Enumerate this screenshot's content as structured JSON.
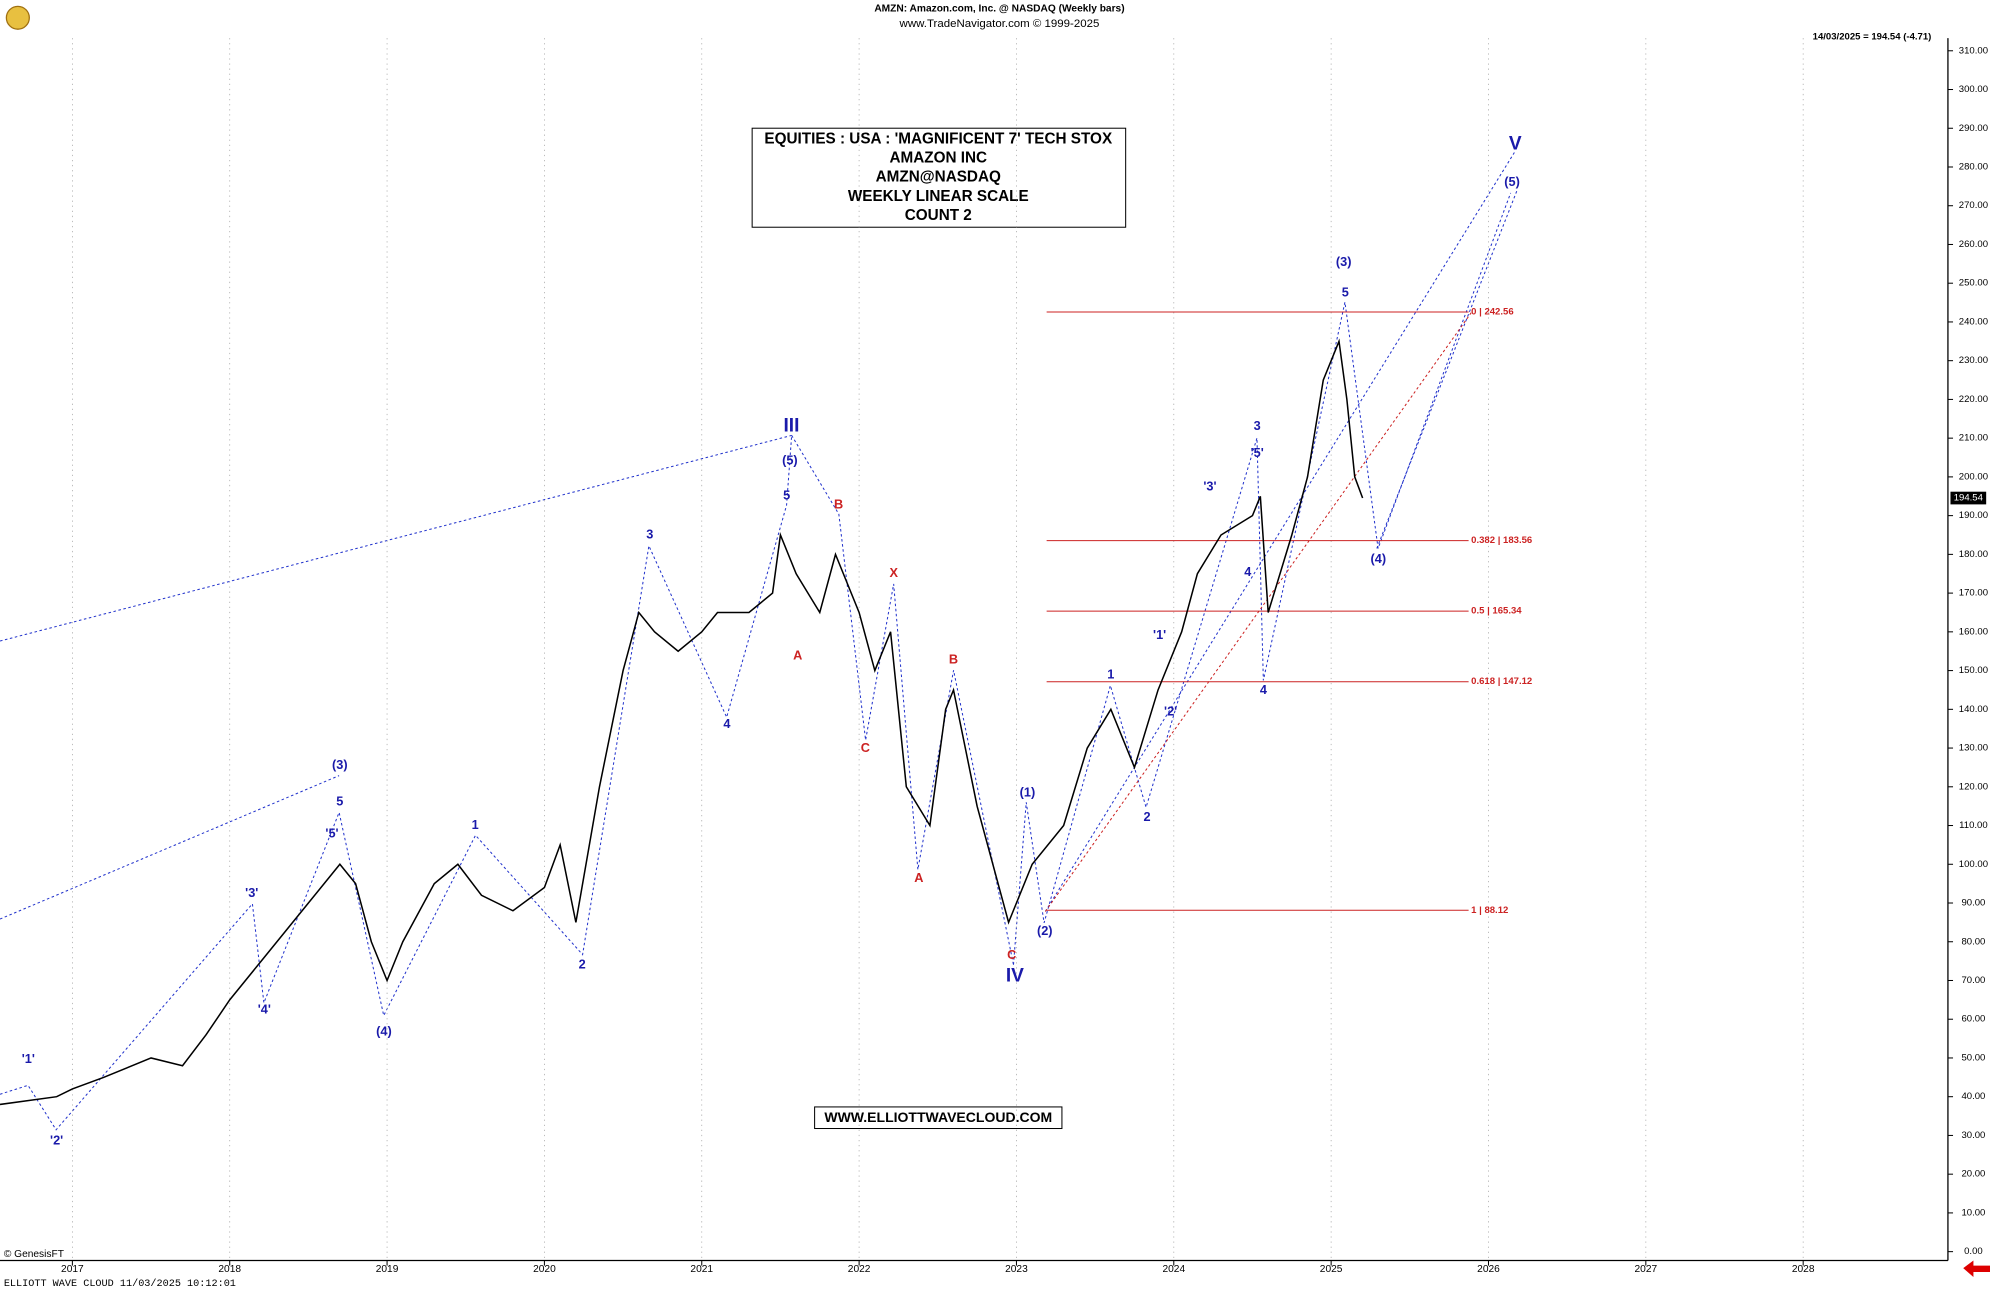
{
  "chart_data": {
    "type": "line",
    "header": [
      "AMZN:  Amazon.com, Inc. @ NASDAQ  (Weekly bars)",
      "www.TradeNavigator.com © 1999-2025"
    ],
    "last_quote": "14/03/2025 = 194.54 (-4.71)",
    "title_box": [
      "EQUITIES : USA : 'MAGNIFICENT 7' TECH STOX",
      "AMAZON INC",
      "AMZN@NASDAQ",
      "WEEKLY LINEAR SCALE",
      "COUNT 2"
    ],
    "website": "WWW.ELLIOTTWAVECLOUD.COM",
    "footer": "ELLIOTT WAVE CLOUD   11/03/2025 10:12:01",
    "copyright": "© GenesisFT",
    "last_price": 194.54,
    "color": "#000000",
    "x": [
      2016.54,
      2016.9,
      2017.0,
      2017.2,
      2017.5,
      2017.7,
      2017.85,
      2018.0,
      2018.2,
      2018.3,
      2018.5,
      2018.6,
      2018.7,
      2018.8,
      2018.9,
      2019.0,
      2019.1,
      2019.3,
      2019.45,
      2019.6,
      2019.8,
      2020.0,
      2020.1,
      2020.2,
      2020.35,
      2020.5,
      2020.6,
      2020.7,
      2020.85,
      2021.0,
      2021.1,
      2021.3,
      2021.45,
      2021.5,
      2021.6,
      2021.75,
      2021.85,
      2022.0,
      2022.1,
      2022.2,
      2022.3,
      2022.45,
      2022.55,
      2022.6,
      2022.75,
      2022.95,
      2023.1,
      2023.3,
      2023.45,
      2023.6,
      2023.75,
      2023.9,
      2024.05,
      2024.15,
      2024.3,
      2024.5,
      2024.55,
      2024.6,
      2024.75,
      2024.85,
      2024.95,
      2025.05,
      2025.1,
      2025.15,
      2025.2
    ],
    "values": [
      38,
      40,
      42,
      45,
      50,
      48,
      56,
      65,
      75,
      80,
      90,
      95,
      100,
      95,
      80,
      70,
      80,
      95,
      100,
      92,
      88,
      94,
      105,
      85,
      120,
      150,
      165,
      160,
      155,
      160,
      165,
      165,
      170,
      185,
      175,
      165,
      180,
      165,
      150,
      160,
      120,
      110,
      140,
      145,
      115,
      85,
      100,
      110,
      130,
      140,
      125,
      145,
      160,
      175,
      185,
      190,
      195,
      165,
      185,
      200,
      225,
      235,
      220,
      200,
      194.54
    ],
    "xlim": [
      2016.54,
      2028.92
    ],
    "xticks": [
      2017,
      2018,
      2019,
      2020,
      2021,
      2022,
      2023,
      2024,
      2025,
      2026,
      2027,
      2028
    ],
    "ylim": [
      0,
      310
    ],
    "yticks": [
      {
        "value": 0,
        "label": "0.00"
      },
      {
        "value": 10,
        "label": "10.00"
      },
      {
        "value": 20,
        "label": "20.00"
      },
      {
        "value": 30,
        "label": "30.00"
      },
      {
        "value": 40,
        "label": "40.00"
      },
      {
        "value": 50,
        "label": "50.00"
      },
      {
        "value": 60,
        "label": "60.00"
      },
      {
        "value": 70,
        "label": "70.00"
      },
      {
        "value": 80,
        "label": "80.00"
      },
      {
        "value": 90,
        "label": "90.00"
      },
      {
        "value": 100,
        "label": "100.00"
      },
      {
        "value": 110,
        "label": "110.00"
      },
      {
        "value": 120,
        "label": "120.00"
      },
      {
        "value": 130,
        "label": "130.00"
      },
      {
        "value": 140,
        "label": "140.00"
      },
      {
        "value": 150,
        "label": "150.00"
      },
      {
        "value": 160,
        "label": "160.00"
      },
      {
        "value": 170,
        "label": "170.00"
      },
      {
        "value": 180,
        "label": "180.00"
      },
      {
        "value": 190,
        "label": "190.00"
      },
      {
        "value": 200,
        "label": "200.00"
      },
      {
        "value": 210,
        "label": "210.00"
      },
      {
        "value": 220,
        "label": "220.00"
      },
      {
        "value": 230,
        "label": "230.00"
      },
      {
        "value": 240,
        "label": "240.00"
      },
      {
        "value": 250,
        "label": "250.00"
      },
      {
        "value": 260,
        "label": "260.00"
      },
      {
        "value": 270,
        "label": "270.00"
      },
      {
        "value": 280,
        "label": "280.00"
      },
      {
        "value": 290,
        "label": "290.00"
      },
      {
        "value": 300,
        "label": "300.00"
      },
      {
        "value": 310,
        "label": "310.00"
      }
    ],
    "grid": true,
    "fib_levels": [
      {
        "value": 242.56,
        "label": "0 | 242.56"
      },
      {
        "value": 183.56,
        "label": "0.382 | 183.56"
      },
      {
        "value": 165.34,
        "label": "0.5 | 165.34"
      },
      {
        "value": 147.12,
        "label": "0.618 | 147.12"
      },
      {
        "value": 88.12,
        "label": "1 | 88.12"
      }
    ],
    "fib_color": "#cc2222",
    "annotations": [
      {
        "text": "'1'",
        "x": 2016.72,
        "y": 49.5,
        "color": "#1a1aaa"
      },
      {
        "text": "'2'",
        "x": 2016.9,
        "y": 28.5,
        "color": "#1a1aaa"
      },
      {
        "text": "'3'",
        "x": 2018.14,
        "y": 92.4,
        "color": "#1a1aaa"
      },
      {
        "text": "'4'",
        "x": 2018.22,
        "y": 62.3,
        "color": "#1a1aaa"
      },
      {
        "text": "'5'",
        "x": 2018.65,
        "y": 107.8,
        "color": "#1a1aaa"
      },
      {
        "text": "5",
        "x": 2018.7,
        "y": 116,
        "color": "#1a1aaa"
      },
      {
        "text": "(3)",
        "x": 2018.7,
        "y": 125.5,
        "color": "#1a1aaa"
      },
      {
        "text": "(4)",
        "x": 2018.98,
        "y": 56.7,
        "color": "#1a1aaa"
      },
      {
        "text": "1",
        "x": 2019.56,
        "y": 110,
        "color": "#1a1aaa"
      },
      {
        "text": "2",
        "x": 2020.24,
        "y": 74,
        "color": "#1a1aaa"
      },
      {
        "text": "3",
        "x": 2020.67,
        "y": 185,
        "color": "#1a1aaa"
      },
      {
        "text": "4",
        "x": 2021.16,
        "y": 136,
        "color": "#1a1aaa"
      },
      {
        "text": "5",
        "x": 2021.54,
        "y": 195,
        "color": "#1a1aaa"
      },
      {
        "text": "(5)",
        "x": 2021.56,
        "y": 204,
        "color": "#1a1aaa"
      },
      {
        "text": "III",
        "x": 2021.57,
        "y": 213,
        "color": "#1a1aaa"
      },
      {
        "text": "A",
        "x": 2021.61,
        "y": 153.7,
        "color": "#cc2222"
      },
      {
        "text": "B",
        "x": 2021.87,
        "y": 192.7,
        "color": "#cc2222"
      },
      {
        "text": "C",
        "x": 2022.04,
        "y": 129.8,
        "color": "#cc2222"
      },
      {
        "text": "X",
        "x": 2022.22,
        "y": 175,
        "color": "#cc2222"
      },
      {
        "text": "A",
        "x": 2022.38,
        "y": 96.3,
        "color": "#cc2222"
      },
      {
        "text": "B",
        "x": 2022.6,
        "y": 152.7,
        "color": "#cc2222"
      },
      {
        "text": "C",
        "x": 2022.97,
        "y": 76.4,
        "color": "#cc2222"
      },
      {
        "text": "IV",
        "x": 2022.99,
        "y": 71,
        "color": "#1a1aaa"
      },
      {
        "text": "(1)",
        "x": 2023.07,
        "y": 118.3,
        "color": "#1a1aaa"
      },
      {
        "text": "(2)",
        "x": 2023.18,
        "y": 82.6,
        "color": "#1a1aaa"
      },
      {
        "text": "1",
        "x": 2023.6,
        "y": 148.8,
        "color": "#1a1aaa"
      },
      {
        "text": "'1'",
        "x": 2023.91,
        "y": 159,
        "color": "#1a1aaa"
      },
      {
        "text": "'2'",
        "x": 2023.98,
        "y": 139.3,
        "color": "#1a1aaa"
      },
      {
        "text": "2",
        "x": 2023.83,
        "y": 112,
        "color": "#1a1aaa"
      },
      {
        "text": "'3'",
        "x": 2024.23,
        "y": 197.3,
        "color": "#1a1aaa"
      },
      {
        "text": "4",
        "x": 2024.47,
        "y": 175.3,
        "color": "#1a1aaa"
      },
      {
        "text": "'5'",
        "x": 2024.53,
        "y": 206,
        "color": "#1a1aaa"
      },
      {
        "text": "3",
        "x": 2024.53,
        "y": 213,
        "color": "#1a1aaa"
      },
      {
        "text": "4",
        "x": 2024.57,
        "y": 144.8,
        "color": "#1a1aaa"
      },
      {
        "text": "(3)",
        "x": 2025.08,
        "y": 255.3,
        "color": "#1a1aaa"
      },
      {
        "text": "5",
        "x": 2025.09,
        "y": 247.4,
        "color": "#1a1aaa"
      },
      {
        "text": "(4)",
        "x": 2025.3,
        "y": 178.6,
        "color": "#1a1aaa"
      },
      {
        "text": "(5)",
        "x": 2026.15,
        "y": 276,
        "color": "#1a1aaa"
      },
      {
        "text": "V",
        "x": 2026.17,
        "y": 285.8,
        "color": "#1a1aaa"
      }
    ]
  }
}
